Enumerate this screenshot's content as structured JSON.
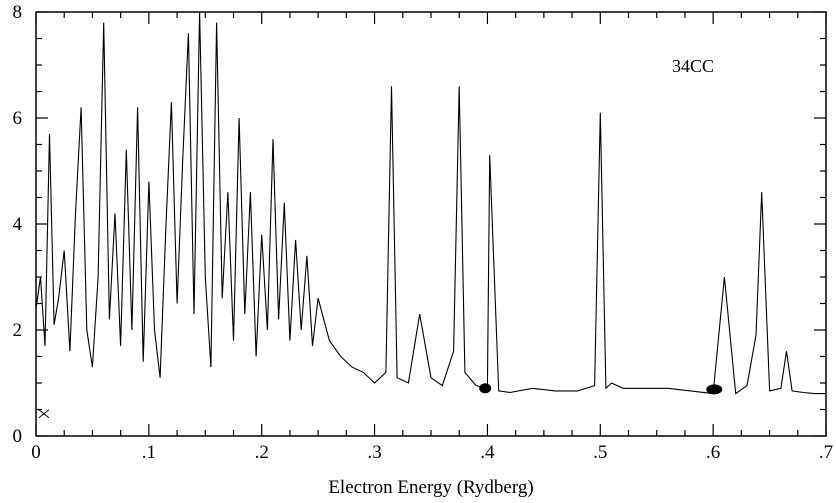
{
  "chart_data": {
    "type": "line",
    "title": "",
    "xlabel": "Electron Energy (Rydberg)",
    "ylabel": "",
    "xlim": [
      0,
      0.7
    ],
    "ylim": [
      0,
      8
    ],
    "grid": false,
    "annotation": "34CC",
    "x_tick_labels": [
      "0",
      ".1",
      ".2",
      ".3",
      ".4",
      ".5",
      ".6",
      ".7"
    ],
    "x_tick_values": [
      0,
      0.1,
      0.2,
      0.3,
      0.4,
      0.5,
      0.6,
      0.7
    ],
    "y_tick_labels": [
      "0",
      "2",
      "4",
      "6",
      "8"
    ],
    "y_tick_values": [
      0,
      2,
      4,
      6,
      8
    ],
    "series": [
      {
        "x": [
          0,
          0.004,
          0.008,
          0.012,
          0.016,
          0.02,
          0.025,
          0.03,
          0.035,
          0.04,
          0.045,
          0.05,
          0.055,
          0.06,
          0.065,
          0.07,
          0.075,
          0.08,
          0.085,
          0.09,
          0.095,
          0.1,
          0.105,
          0.11,
          0.115,
          0.12,
          0.125,
          0.13,
          0.135,
          0.14,
          0.145,
          0.15,
          0.155,
          0.16,
          0.165,
          0.17,
          0.175,
          0.18,
          0.185,
          0.19,
          0.195,
          0.2,
          0.205,
          0.21,
          0.215,
          0.22,
          0.225,
          0.23,
          0.235,
          0.24,
          0.245,
          0.25,
          0.26,
          0.27,
          0.28,
          0.29,
          0.3,
          0.31,
          0.315,
          0.32,
          0.33,
          0.34,
          0.35,
          0.36,
          0.37,
          0.375,
          0.38,
          0.39,
          0.4,
          0.402,
          0.41,
          0.42,
          0.44,
          0.46,
          0.48,
          0.495,
          0.5,
          0.505,
          0.51,
          0.52,
          0.54,
          0.56,
          0.58,
          0.6,
          0.61,
          0.62,
          0.63,
          0.638,
          0.643,
          0.65,
          0.66,
          0.665,
          0.67,
          0.68,
          0.69,
          0.7
        ],
        "y": [
          2.4,
          3.0,
          1.7,
          5.7,
          2.1,
          2.6,
          3.5,
          1.6,
          4.2,
          6.2,
          2.0,
          1.3,
          3.0,
          7.8,
          2.2,
          4.2,
          1.7,
          5.4,
          2.0,
          6.2,
          1.4,
          4.8,
          2.0,
          1.1,
          3.9,
          6.3,
          2.5,
          5.2,
          7.6,
          2.3,
          8.0,
          3.0,
          1.3,
          7.8,
          2.6,
          4.6,
          1.8,
          6.0,
          2.3,
          4.6,
          1.5,
          3.8,
          2.0,
          5.6,
          2.2,
          4.4,
          1.8,
          3.7,
          2.0,
          3.4,
          1.7,
          2.6,
          1.8,
          1.5,
          1.3,
          1.2,
          1.0,
          1.2,
          6.6,
          1.1,
          1.0,
          2.3,
          1.1,
          0.95,
          1.6,
          6.6,
          1.2,
          0.95,
          0.9,
          5.3,
          0.85,
          0.82,
          0.9,
          0.85,
          0.85,
          0.95,
          6.1,
          0.9,
          1.0,
          0.9,
          0.9,
          0.9,
          0.85,
          0.8,
          3.0,
          0.8,
          0.95,
          1.9,
          4.6,
          0.85,
          0.9,
          1.6,
          0.85,
          0.82,
          0.8,
          0.8
        ]
      }
    ]
  }
}
